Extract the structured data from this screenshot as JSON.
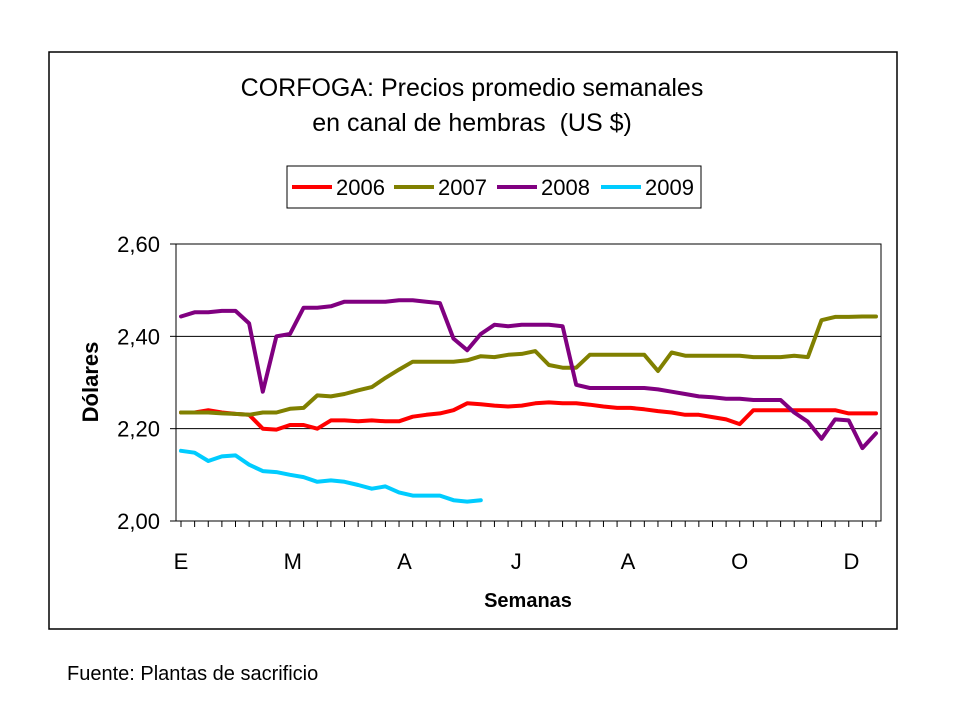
{
  "chart_data": {
    "type": "line",
    "title_lines": [
      "CORFOGA: Precios promedio semanales",
      "en canal de hembras  (US $)"
    ],
    "ylabel": "Dólares",
    "xlabel": "Semanas",
    "x_tick_labels": [
      "E",
      "M",
      "A",
      "J",
      "A",
      "O",
      "D"
    ],
    "y_tick_labels": [
      "2,00",
      "2,20",
      "2,40",
      "2,60"
    ],
    "y_ticks": [
      2.0,
      2.2,
      2.4,
      2.6
    ],
    "ylim": [
      2.0,
      2.6
    ],
    "weeks": 52,
    "grid": "horizontal",
    "legend_position": "top",
    "series": [
      {
        "name": "2006",
        "color": "#ff0000",
        "values": [
          2.235,
          2.235,
          2.24,
          2.235,
          2.232,
          2.23,
          2.2,
          2.198,
          2.208,
          2.208,
          2.2,
          2.218,
          2.218,
          2.216,
          2.218,
          2.216,
          2.216,
          2.226,
          2.23,
          2.233,
          2.24,
          2.255,
          2.253,
          2.25,
          2.248,
          2.25,
          2.255,
          2.257,
          2.255,
          2.255,
          2.252,
          2.248,
          2.245,
          2.245,
          2.242,
          2.238,
          2.235,
          2.23,
          2.23,
          2.225,
          2.22,
          2.21,
          2.24,
          2.24,
          2.24,
          2.24,
          2.24,
          2.24,
          2.24,
          2.233,
          2.233,
          2.233
        ]
      },
      {
        "name": "2007",
        "color": "#808000",
        "values": [
          2.235,
          2.235,
          2.235,
          2.233,
          2.232,
          2.23,
          2.235,
          2.235,
          2.243,
          2.245,
          2.272,
          2.27,
          2.275,
          2.283,
          2.29,
          2.31,
          2.328,
          2.345,
          2.345,
          2.345,
          2.345,
          2.348,
          2.357,
          2.355,
          2.36,
          2.362,
          2.368,
          2.338,
          2.332,
          2.332,
          2.36,
          2.36,
          2.36,
          2.36,
          2.36,
          2.325,
          2.365,
          2.358,
          2.358,
          2.358,
          2.358,
          2.358,
          2.355,
          2.355,
          2.355,
          2.358,
          2.355,
          2.435,
          2.442,
          2.442,
          2.443,
          2.443
        ]
      },
      {
        "name": "2008",
        "color": "#800080",
        "values": [
          2.443,
          2.452,
          2.452,
          2.455,
          2.455,
          2.428,
          2.28,
          2.4,
          2.405,
          2.462,
          2.462,
          2.465,
          2.475,
          2.475,
          2.475,
          2.475,
          2.478,
          2.478,
          2.475,
          2.472,
          2.395,
          2.37,
          2.405,
          2.425,
          2.422,
          2.425,
          2.425,
          2.425,
          2.422,
          2.295,
          2.288,
          2.288,
          2.288,
          2.288,
          2.288,
          2.285,
          2.28,
          2.275,
          2.27,
          2.268,
          2.265,
          2.265,
          2.262,
          2.262,
          2.262,
          2.235,
          2.215,
          2.178,
          2.22,
          2.218,
          2.158,
          2.19
        ]
      },
      {
        "name": "2009",
        "color": "#00ccff",
        "values": [
          2.152,
          2.148,
          2.13,
          2.14,
          2.142,
          2.122,
          2.108,
          2.106,
          2.1,
          2.095,
          2.085,
          2.088,
          2.085,
          2.078,
          2.07,
          2.075,
          2.062,
          2.055,
          2.055,
          2.055,
          2.045,
          2.042,
          2.045
        ]
      }
    ]
  },
  "source_note": "Fuente: Plantas de sacrificio"
}
